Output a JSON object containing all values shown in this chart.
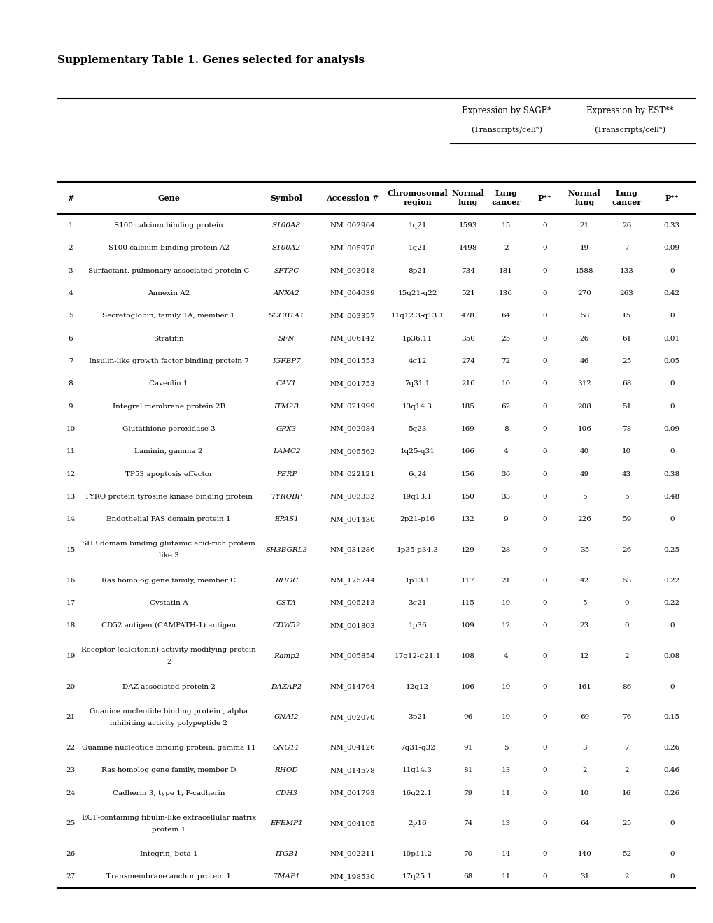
{
  "title": "Supplementary Table 1. Genes selected for analysis",
  "background_color": "#ffffff",
  "rows": [
    [
      "1",
      "S100 calcium binding protein",
      "S100A8",
      "NM_002964",
      "1q21",
      "1593",
      "15",
      "0",
      "21",
      "26",
      "0.33"
    ],
    [
      "2",
      "S100 calcium binding protein A2",
      "S100A2",
      "NM_005978",
      "1q21",
      "1498",
      "2",
      "0",
      "19",
      "7",
      "0.09"
    ],
    [
      "3",
      "Surfactant, pulmonary-associated protein C",
      "SFTPC",
      "NM_003018",
      "8p21",
      "734",
      "181",
      "0",
      "1588",
      "133",
      "0"
    ],
    [
      "4",
      "Annexin A2",
      "ANXA2",
      "NM_004039",
      "15q21-q22",
      "521",
      "136",
      "0",
      "270",
      "263",
      "0.42"
    ],
    [
      "5",
      "Secretoglobin, family 1A, member 1",
      "SCGB1A1",
      "NM_003357",
      "11q12.3-q13.1",
      "478",
      "64",
      "0",
      "58",
      "15",
      "0"
    ],
    [
      "6",
      "Stratifin",
      "SFN",
      "NM_006142",
      "1p36.11",
      "350",
      "25",
      "0",
      "26",
      "61",
      "0.01"
    ],
    [
      "7",
      "Insulin-like growth factor binding protein 7",
      "IGFBP7",
      "NM_001553",
      "4q12",
      "274",
      "72",
      "0",
      "46",
      "25",
      "0.05"
    ],
    [
      "8",
      "Caveolin 1",
      "CAV1",
      "NM_001753",
      "7q31.1",
      "210",
      "10",
      "0",
      "312",
      "68",
      "0"
    ],
    [
      "9",
      "Integral membrane protein 2B",
      "ITM2B",
      "NM_021999",
      "13q14.3",
      "185",
      "62",
      "0",
      "208",
      "51",
      "0"
    ],
    [
      "10",
      "Glutathione peroxidase 3",
      "GPX3",
      "NM_002084",
      "5q23",
      "169",
      "8",
      "0",
      "106",
      "78",
      "0.09"
    ],
    [
      "11",
      "Laminin, gamma 2",
      "LAMC2",
      "NM_005562",
      "1q25-q31",
      "166",
      "4",
      "0",
      "40",
      "10",
      "0"
    ],
    [
      "12",
      "TP53 apoptosis effector",
      "PERP",
      "NM_022121",
      "6q24",
      "156",
      "36",
      "0",
      "49",
      "43",
      "0.38"
    ],
    [
      "13",
      "TYRO protein tyrosine kinase binding protein",
      "TYROBP",
      "NM_003332",
      "19q13.1",
      "150",
      "33",
      "0",
      "5",
      "5",
      "0.48"
    ],
    [
      "14",
      "Endothelial PAS domain protein 1",
      "EPAS1",
      "NM_001430",
      "2p21-p16",
      "132",
      "9",
      "0",
      "226",
      "59",
      "0"
    ],
    [
      "15",
      "SH3 domain binding glutamic acid-rich protein\nlike 3",
      "SH3BGRL3",
      "NM_031286",
      "1p35-p34.3",
      "129",
      "28",
      "0",
      "35",
      "26",
      "0.25"
    ],
    [
      "16",
      "Ras homolog gene family, member C",
      "RHOC",
      "NM_175744",
      "1p13.1",
      "117",
      "21",
      "0",
      "42",
      "53",
      "0.22"
    ],
    [
      "17",
      "Cystatin A",
      "CSTA",
      "NM_005213",
      "3q21",
      "115",
      "19",
      "0",
      "5",
      "0",
      "0.22"
    ],
    [
      "18",
      "CD52 antigen (CAMPATH-1) antigen",
      "CDW52",
      "NM_001803",
      "1p36",
      "109",
      "12",
      "0",
      "23",
      "0",
      "0"
    ],
    [
      "19",
      "Receptor (calcitonin) activity modifying protein\n2",
      "Ramp2",
      "NM_005854",
      "17q12-q21.1",
      "108",
      "4",
      "0",
      "12",
      "2",
      "0.08"
    ],
    [
      "20",
      "DAZ associated protein 2",
      "DAZAP2",
      "NM_014764",
      "12q12",
      "106",
      "19",
      "0",
      "161",
      "86",
      "0"
    ],
    [
      "21",
      "Guanine nucleotide binding protein , alpha\ninhibiting activity polypeptide 2",
      "GNAI2",
      "NM_002070",
      "3p21",
      "96",
      "19",
      "0",
      "69",
      "76",
      "0.15"
    ],
    [
      "22",
      "Guanine nucleotide binding protein, gamma 11",
      "GNG11",
      "NM_004126",
      "7q31-q32",
      "91",
      "5",
      "0",
      "3",
      "7",
      "0.26"
    ],
    [
      "23",
      "Ras homolog gene family, member D",
      "RHOD",
      "NM_014578",
      "11q14.3",
      "81",
      "13",
      "0",
      "2",
      "2",
      "0.46"
    ],
    [
      "24",
      "Cadherin 3, type 1, P-cadherin",
      "CDH3",
      "NM_001793",
      "16q22.1",
      "79",
      "11",
      "0",
      "10",
      "16",
      "0.26"
    ],
    [
      "25",
      "EGF-containing fibulin-like extracellular matrix\nprotein 1",
      "EFEMP1",
      "NM_004105",
      "2p16",
      "74",
      "13",
      "0",
      "64",
      "25",
      "0"
    ],
    [
      "26",
      "Integrin, beta 1",
      "ITGB1",
      "NM_002211",
      "10p11.2",
      "70",
      "14",
      "0",
      "140",
      "52",
      "0"
    ],
    [
      "27",
      "Transmembrane anchor protein 1",
      "TMAP1",
      "NM_198530",
      "17q25.1",
      "68",
      "11",
      "0",
      "31",
      "2",
      "0"
    ]
  ]
}
